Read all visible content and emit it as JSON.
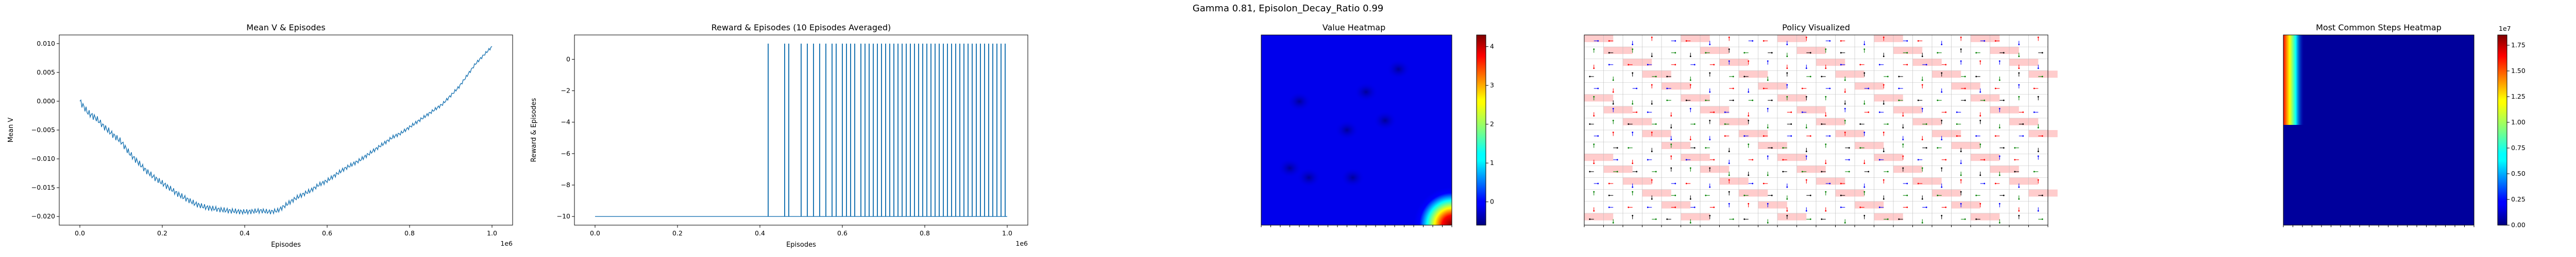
{
  "suptitle": "Gamma  0.81, Episolon_Decay_Ratio 0.99",
  "chart_data": [
    {
      "type": "line",
      "title": "Mean V & Episodes",
      "xlabel": "Episodes",
      "ylabel": "Mean V",
      "x_multiplier_label": "1e6",
      "xlim": [
        -0.05,
        1.05
      ],
      "ylim": [
        -0.0215,
        0.0115
      ],
      "xticks": [
        0.0,
        0.2,
        0.4,
        0.6,
        0.8,
        1.0
      ],
      "xtick_labels": [
        "0.0",
        "0.2",
        "0.4",
        "0.6",
        "0.8",
        "1.0"
      ],
      "yticks": [
        -0.02,
        -0.015,
        -0.01,
        -0.005,
        0.0,
        0.005,
        0.01
      ],
      "ytick_labels": [
        "−0.020",
        "−0.015",
        "−0.010",
        "−0.005",
        "0.000",
        "0.005",
        "0.010"
      ],
      "color": "#1f77b4",
      "series": [
        {
          "x": [
            0.0,
            0.02,
            0.04,
            0.06,
            0.08,
            0.1,
            0.12,
            0.14,
            0.16,
            0.18,
            0.2,
            0.22,
            0.24,
            0.26,
            0.28,
            0.3,
            0.32,
            0.34,
            0.36,
            0.38,
            0.4,
            0.42,
            0.44,
            0.46,
            0.48,
            0.5,
            0.52,
            0.54,
            0.56,
            0.58,
            0.6,
            0.62,
            0.64,
            0.66,
            0.68,
            0.7,
            0.72,
            0.74,
            0.76,
            0.78,
            0.8,
            0.82,
            0.84,
            0.86,
            0.88,
            0.9,
            0.92,
            0.94,
            0.96,
            0.98,
            1.0
          ],
          "values": [
            0.0,
            -0.002,
            -0.003,
            -0.0045,
            -0.0058,
            -0.007,
            -0.009,
            -0.0105,
            -0.012,
            -0.0132,
            -0.0142,
            -0.0152,
            -0.0162,
            -0.017,
            -0.0178,
            -0.0183,
            -0.0186,
            -0.0188,
            -0.019,
            -0.0191,
            -0.0192,
            -0.0191,
            -0.019,
            -0.0192,
            -0.019,
            -0.018,
            -0.017,
            -0.0162,
            -0.0155,
            -0.0145,
            -0.0138,
            -0.0128,
            -0.0118,
            -0.011,
            -0.0102,
            -0.0092,
            -0.0082,
            -0.0072,
            -0.0062,
            -0.0055,
            -0.0045,
            -0.0035,
            -0.0025,
            -0.0015,
            -0.0005,
            0.001,
            0.0025,
            0.0045,
            0.0065,
            0.008,
            0.0095
          ]
        }
      ]
    },
    {
      "type": "bar",
      "title": "Reward & Episodes (10 Episodes Averaged)",
      "xlabel": "Episodes",
      "ylabel": "Reward & Episodes",
      "x_multiplier_label": "1e6",
      "xlim": [
        -0.05,
        1.05
      ],
      "ylim": [
        -10.55,
        1.55
      ],
      "xticks": [
        0.0,
        0.2,
        0.4,
        0.6,
        0.8,
        1.0
      ],
      "xtick_labels": [
        "0.0",
        "0.2",
        "0.4",
        "0.6",
        "0.8",
        "1.0"
      ],
      "yticks": [
        -10,
        -8,
        -6,
        -4,
        -2,
        0
      ],
      "ytick_labels": [
        "−10",
        "−8",
        "−6",
        "−4",
        "−2",
        "0"
      ],
      "color": "#1f77b4",
      "baseline": -10,
      "success_value": 1,
      "success_x": [
        0.42,
        0.46,
        0.47,
        0.5,
        0.515,
        0.53,
        0.545,
        0.56,
        0.575,
        0.585,
        0.6,
        0.61,
        0.62,
        0.63,
        0.645,
        0.655,
        0.665,
        0.675,
        0.685,
        0.695,
        0.705,
        0.715,
        0.725,
        0.735,
        0.745,
        0.755,
        0.765,
        0.775,
        0.785,
        0.795,
        0.805,
        0.815,
        0.825,
        0.835,
        0.845,
        0.855,
        0.865,
        0.875,
        0.885,
        0.895,
        0.905,
        0.915,
        0.925,
        0.935,
        0.945,
        0.955,
        0.965,
        0.975,
        0.985,
        0.995
      ]
    },
    {
      "type": "heatmap",
      "title": "Value Heatmap",
      "colormap": "jet",
      "vmin": -0.6,
      "vmax": 4.3,
      "colorbar_ticks": [
        0,
        1,
        2,
        3,
        4
      ],
      "colorbar_tick_labels": [
        "0",
        "1",
        "2",
        "3",
        "4"
      ],
      "background_value": 0.0,
      "dark_spots_value": -0.3,
      "hot_corner": "bottom-right",
      "hot_corner_peak": 4.2
    },
    {
      "type": "heatmap",
      "title": "Policy Visualized",
      "grid": true,
      "arrow_colors": [
        "#0000ff",
        "#008000",
        "#ff0000",
        "#000000"
      ],
      "highlight_color": "#ffcccc"
    },
    {
      "type": "heatmap",
      "title": "Most Common Steps Heatmap",
      "colormap": "jet",
      "colorbar_multiplier_label": "1e7",
      "vmin": 0,
      "vmax": 1.85,
      "colorbar_ticks": [
        0.0,
        0.25,
        0.5,
        0.75,
        1.0,
        1.25,
        1.5,
        1.75
      ],
      "colorbar_tick_labels": [
        "0.00",
        "0.25",
        "0.50",
        "0.75",
        "1.00",
        "1.25",
        "1.50",
        "1.75"
      ],
      "hot_region": "left-top"
    }
  ]
}
